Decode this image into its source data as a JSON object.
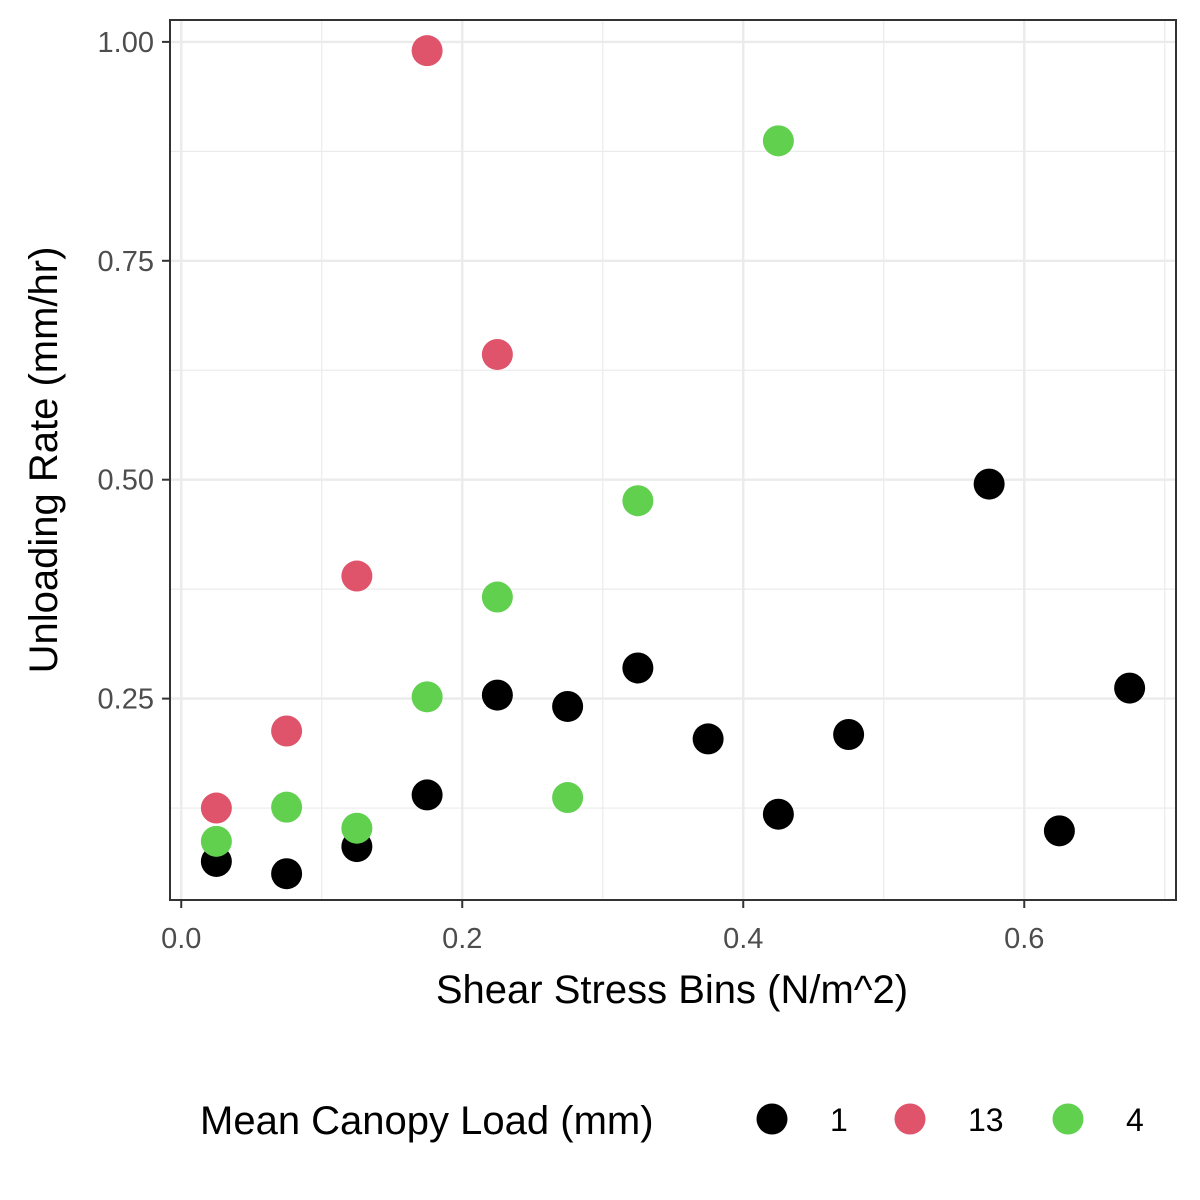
{
  "chart_data": {
    "type": "scatter",
    "title": "",
    "xlabel": "Shear Stress Bins (N/m^2)",
    "ylabel": "Unloading Rate (mm/hr)",
    "xlim": [
      -0.008,
      0.708
    ],
    "ylim": [
      0.02,
      1.025
    ],
    "x_ticks": [
      0.0,
      0.2,
      0.4,
      0.6
    ],
    "x_tick_labels": [
      "0.0",
      "0.2",
      "0.4",
      "0.6"
    ],
    "y_ticks": [
      0.25,
      0.5,
      0.75,
      1.0
    ],
    "y_tick_labels": [
      "0.25",
      "0.50",
      "0.75",
      "1.00"
    ],
    "grid": true,
    "legend": {
      "title": "Mean Canopy Load (mm)",
      "position": "bottom"
    },
    "series": [
      {
        "name": "1",
        "color": "#000000",
        "points": [
          [
            0.025,
            0.064
          ],
          [
            0.075,
            0.05
          ],
          [
            0.125,
            0.081
          ],
          [
            0.175,
            0.14
          ],
          [
            0.225,
            0.254
          ],
          [
            0.275,
            0.241
          ],
          [
            0.325,
            0.285
          ],
          [
            0.375,
            0.204
          ],
          [
            0.425,
            0.118
          ],
          [
            0.475,
            0.209
          ],
          [
            0.575,
            0.495
          ],
          [
            0.625,
            0.099
          ],
          [
            0.675,
            0.262
          ]
        ]
      },
      {
        "name": "13",
        "color": "#df536b",
        "points": [
          [
            0.025,
            0.125
          ],
          [
            0.075,
            0.213
          ],
          [
            0.125,
            0.39
          ],
          [
            0.175,
            0.99
          ],
          [
            0.225,
            0.643
          ]
        ]
      },
      {
        "name": "4",
        "color": "#61d04f",
        "points": [
          [
            0.025,
            0.087
          ],
          [
            0.075,
            0.126
          ],
          [
            0.125,
            0.102
          ],
          [
            0.175,
            0.252
          ],
          [
            0.225,
            0.366
          ],
          [
            0.275,
            0.137
          ],
          [
            0.325,
            0.476
          ],
          [
            0.425,
            0.887
          ]
        ]
      }
    ]
  }
}
